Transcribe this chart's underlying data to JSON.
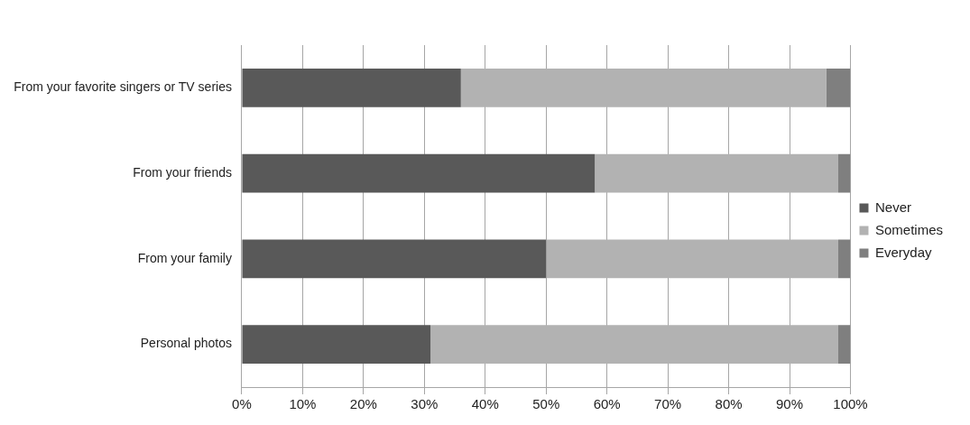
{
  "chart_data": {
    "type": "bar",
    "orientation": "horizontal",
    "stacked": true,
    "categories": [
      "From your favorite singers or TV series",
      "From your friends",
      "From your family",
      "Personal photos"
    ],
    "series": [
      {
        "name": "Never",
        "color": "#595959",
        "values": [
          36,
          58,
          50,
          31
        ]
      },
      {
        "name": "Sometimes",
        "color": "#b2b2b2",
        "values": [
          60,
          40,
          48,
          67
        ]
      },
      {
        "name": "Everyday",
        "color": "#7f7f7f",
        "values": [
          4,
          2,
          2,
          2
        ]
      }
    ],
    "xlim": [
      0,
      100
    ],
    "xticks": [
      {
        "value": 0,
        "label": "0%"
      },
      {
        "value": 10,
        "label": "10%"
      },
      {
        "value": 20,
        "label": "20%"
      },
      {
        "value": 30,
        "label": "30%"
      },
      {
        "value": 40,
        "label": "40%"
      },
      {
        "value": 50,
        "label": "50%"
      },
      {
        "value": 60,
        "label": "60%"
      },
      {
        "value": 70,
        "label": "70%"
      },
      {
        "value": 80,
        "label": "80%"
      },
      {
        "value": 90,
        "label": "90%"
      },
      {
        "value": 100,
        "label": "100%"
      }
    ],
    "grid": "x",
    "legend": "right"
  }
}
